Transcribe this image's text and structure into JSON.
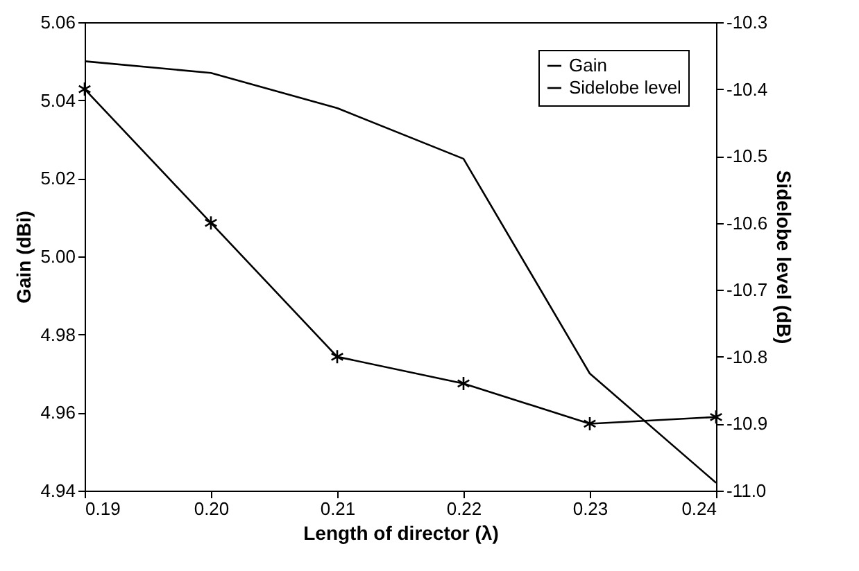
{
  "chart_data": {
    "type": "line",
    "xlabel": "Length of director (λ)",
    "ylabel": "Gain (dBi)",
    "y2label": "Sidelobe level (dB)",
    "x": [
      0.19,
      0.2,
      0.21,
      0.22,
      0.23,
      0.24
    ],
    "xlim": [
      0.19,
      0.24
    ],
    "xticks": [
      {
        "value": 0.19,
        "label": "0.19"
      },
      {
        "value": 0.2,
        "label": "0.20"
      },
      {
        "value": 0.21,
        "label": "0.21"
      },
      {
        "value": 0.22,
        "label": "0.22"
      },
      {
        "value": 0.23,
        "label": "0.23"
      },
      {
        "value": 0.24,
        "label": "0.24"
      }
    ],
    "ylim": [
      4.94,
      5.06
    ],
    "yticks": [
      {
        "value": 4.94,
        "label": "4.94"
      },
      {
        "value": 4.96,
        "label": "4.96"
      },
      {
        "value": 4.98,
        "label": "4.98"
      },
      {
        "value": 5.0,
        "label": "5.00"
      },
      {
        "value": 5.02,
        "label": "5.02"
      },
      {
        "value": 5.04,
        "label": "5.04"
      },
      {
        "value": 5.06,
        "label": "5.06"
      }
    ],
    "y2lim": [
      -11.0,
      -10.3
    ],
    "y2ticks": [
      {
        "value": -11.0,
        "label": "-11.0"
      },
      {
        "value": -10.9,
        "label": "-10.9"
      },
      {
        "value": -10.8,
        "label": "-10.8"
      },
      {
        "value": -10.7,
        "label": "-10.7"
      },
      {
        "value": -10.6,
        "label": "-10.6"
      },
      {
        "value": -10.5,
        "label": "-10.5"
      },
      {
        "value": -10.4,
        "label": "-10.4"
      },
      {
        "value": -10.3,
        "label": "-10.3"
      }
    ],
    "legend": "top right",
    "grid": false,
    "series": [
      {
        "name": "Gain",
        "color": "#000000",
        "marker": "none",
        "values": [
          5.05,
          5.047,
          5.038,
          5.025,
          4.97,
          4.942
        ]
      },
      {
        "name": "Sidelobe level",
        "color": "#000000",
        "marker": "cross",
        "axis": "y2",
        "values": [
          -10.4,
          -10.6,
          -10.8,
          -10.84,
          -10.9,
          -10.89
        ]
      }
    ]
  }
}
